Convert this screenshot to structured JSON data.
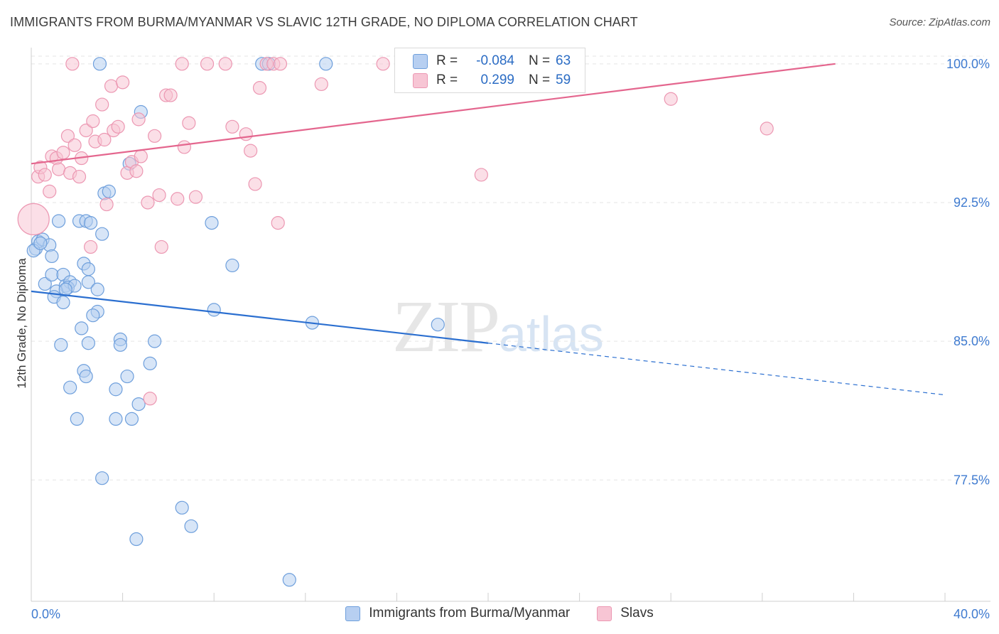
{
  "header": {
    "title": "IMMIGRANTS FROM BURMA/MYANMAR VS SLAVIC 12TH GRADE, NO DIPLOMA CORRELATION CHART",
    "source": "Source: ZipAtlas.com"
  },
  "watermark": {
    "zip": "ZIP",
    "atlas": "atlas"
  },
  "legend": {
    "rows": [
      {
        "r_label": "R =",
        "r_value": "-0.084",
        "n_label": "N =",
        "n_value": "63"
      },
      {
        "r_label": "R =",
        "r_value": "0.299",
        "n_label": "N =",
        "n_value": "59"
      }
    ]
  },
  "colors": {
    "blue_fill": "#b7cff1",
    "blue_stroke": "#6e9fdc",
    "blue_line": "#2b6fd0",
    "pink_fill": "#f7c5d4",
    "pink_stroke": "#ec97b2",
    "pink_line": "#e4668e",
    "tick_label": "#3f7bd0",
    "grid": "#e5e5e5"
  },
  "chart_data": {
    "type": "scatter",
    "title": "IMMIGRANTS FROM BURMA/MYANMAR VS SLAVIC 12TH GRADE, NO DIPLOMA CORRELATION CHART",
    "xlabel": "",
    "ylabel": "12th Grade, No Diploma",
    "xlim": [
      0,
      40
    ],
    "ylim": [
      70.9,
      101.3
    ],
    "x_tick_labels": [
      "0.0%",
      "40.0%"
    ],
    "y_ticks": [
      77.5,
      85.0,
      92.5,
      100.0
    ],
    "y_tick_labels": [
      "77.5%",
      "85.0%",
      "92.5%",
      "100.0%"
    ],
    "grid": true,
    "legend_position": "top-center",
    "series": [
      {
        "name": "Immigrants from Burma/Myanmar",
        "color": "#6e9fdc",
        "trend": {
          "x_start": 0.0,
          "y_start": 87.7,
          "x_end": 20.0,
          "y_end": 84.9,
          "dashed_to_x": 40.0,
          "dashed_to_y": 82.1
        },
        "points": [
          [
            0.2,
            90.0,
            9
          ],
          [
            0.3,
            90.4,
            9
          ],
          [
            0.5,
            90.5,
            9
          ],
          [
            0.8,
            90.2,
            9
          ],
          [
            0.9,
            89.6,
            9
          ],
          [
            0.6,
            88.1,
            9
          ],
          [
            0.9,
            88.6,
            9
          ],
          [
            1.4,
            88.6,
            9
          ],
          [
            1.5,
            88.0,
            9
          ],
          [
            1.7,
            88.2,
            9
          ],
          [
            1.6,
            87.9,
            9
          ],
          [
            1.1,
            87.7,
            9
          ],
          [
            1.0,
            87.4,
            9
          ],
          [
            1.4,
            87.1,
            9
          ],
          [
            1.2,
            91.5,
            9
          ],
          [
            2.1,
            91.5,
            9
          ],
          [
            2.4,
            91.5,
            9
          ],
          [
            2.6,
            91.4,
            9
          ],
          [
            2.3,
            89.2,
            9
          ],
          [
            2.5,
            88.9,
            9
          ],
          [
            2.5,
            88.2,
            9
          ],
          [
            2.9,
            87.8,
            9
          ],
          [
            3.2,
            93.0,
            9
          ],
          [
            3.1,
            90.8,
            9
          ],
          [
            3.4,
            93.1,
            9
          ],
          [
            4.3,
            94.6,
            9
          ],
          [
            4.8,
            97.4,
            9
          ],
          [
            2.9,
            86.6,
            9
          ],
          [
            2.7,
            86.4,
            9
          ],
          [
            2.2,
            85.7,
            9
          ],
          [
            2.5,
            84.9,
            9
          ],
          [
            1.3,
            84.8,
            9
          ],
          [
            3.9,
            85.1,
            9
          ],
          [
            3.9,
            84.8,
            9
          ],
          [
            5.4,
            85.0,
            9
          ],
          [
            5.2,
            83.8,
            9
          ],
          [
            2.3,
            83.4,
            9
          ],
          [
            2.4,
            83.1,
            9
          ],
          [
            4.2,
            83.1,
            9
          ],
          [
            1.7,
            82.5,
            9
          ],
          [
            3.7,
            82.4,
            9
          ],
          [
            4.7,
            81.6,
            9
          ],
          [
            2.0,
            80.8,
            9
          ],
          [
            3.7,
            80.8,
            9
          ],
          [
            4.4,
            80.8,
            9
          ],
          [
            3.1,
            77.6,
            9
          ],
          [
            6.6,
            76.0,
            9
          ],
          [
            7.0,
            75.0,
            9
          ],
          [
            4.6,
            74.3,
            9
          ],
          [
            11.3,
            72.1,
            9
          ],
          [
            7.9,
            91.4,
            9
          ],
          [
            8.8,
            89.1,
            9
          ],
          [
            8.0,
            86.7,
            9
          ],
          [
            12.3,
            86.0,
            9
          ],
          [
            17.8,
            85.9,
            9
          ],
          [
            3.0,
            100.0,
            9
          ],
          [
            10.1,
            100.0,
            9
          ],
          [
            10.4,
            100.0,
            9
          ],
          [
            12.9,
            100.0,
            9
          ],
          [
            0.1,
            89.9,
            9
          ],
          [
            0.4,
            90.3,
            9
          ],
          [
            1.9,
            88.0,
            9
          ],
          [
            1.5,
            87.8,
            9
          ]
        ]
      },
      {
        "name": "Slavs",
        "color": "#ec97b2",
        "trend": {
          "x_start": 0.0,
          "y_start": 94.6,
          "x_end": 35.2,
          "y_end": 100.0
        },
        "points": [
          [
            0.1,
            91.6,
            22
          ],
          [
            0.3,
            93.9,
            9
          ],
          [
            0.4,
            94.4,
            9
          ],
          [
            0.6,
            94.0,
            9
          ],
          [
            0.8,
            93.1,
            9
          ],
          [
            0.9,
            95.0,
            9
          ],
          [
            1.1,
            94.9,
            9
          ],
          [
            1.2,
            94.3,
            9
          ],
          [
            1.4,
            95.2,
            9
          ],
          [
            1.6,
            96.1,
            9
          ],
          [
            1.7,
            94.1,
            9
          ],
          [
            1.9,
            95.6,
            9
          ],
          [
            2.1,
            93.9,
            9
          ],
          [
            2.2,
            94.9,
            9
          ],
          [
            2.4,
            96.4,
            9
          ],
          [
            2.6,
            90.1,
            9
          ],
          [
            2.7,
            96.9,
            9
          ],
          [
            2.8,
            95.8,
            9
          ],
          [
            3.1,
            97.8,
            9
          ],
          [
            3.2,
            95.9,
            9
          ],
          [
            3.3,
            92.4,
            9
          ],
          [
            3.5,
            98.8,
            9
          ],
          [
            3.6,
            96.4,
            9
          ],
          [
            3.8,
            96.6,
            9
          ],
          [
            4.0,
            99.0,
            9
          ],
          [
            4.2,
            94.1,
            9
          ],
          [
            4.4,
            94.7,
            9
          ],
          [
            4.6,
            94.2,
            9
          ],
          [
            4.8,
            95.0,
            9
          ],
          [
            4.7,
            97.0,
            9
          ],
          [
            5.1,
            92.5,
            9
          ],
          [
            5.4,
            96.1,
            9
          ],
          [
            5.6,
            92.9,
            9
          ],
          [
            5.7,
            90.1,
            9
          ],
          [
            5.9,
            98.3,
            9
          ],
          [
            6.1,
            98.3,
            9
          ],
          [
            6.4,
            92.7,
            9
          ],
          [
            6.7,
            95.5,
            9
          ],
          [
            6.9,
            96.8,
            9
          ],
          [
            7.2,
            92.8,
            9
          ],
          [
            6.6,
            100.0,
            9
          ],
          [
            7.7,
            100.0,
            9
          ],
          [
            8.5,
            100.0,
            9
          ],
          [
            8.8,
            96.6,
            9
          ],
          [
            9.4,
            96.2,
            9
          ],
          [
            9.6,
            95.3,
            9
          ],
          [
            9.8,
            93.5,
            9
          ],
          [
            10.0,
            98.7,
            9
          ],
          [
            10.3,
            100.0,
            9
          ],
          [
            10.6,
            100.0,
            9
          ],
          [
            10.8,
            91.4,
            9
          ],
          [
            10.9,
            100.0,
            9
          ],
          [
            12.7,
            98.9,
            9
          ],
          [
            15.4,
            100.0,
            9
          ],
          [
            19.7,
            94.0,
            9
          ],
          [
            28.0,
            98.1,
            9
          ],
          [
            32.2,
            96.5,
            9
          ],
          [
            5.2,
            81.9,
            9
          ],
          [
            1.8,
            100.0,
            9
          ]
        ]
      }
    ]
  }
}
